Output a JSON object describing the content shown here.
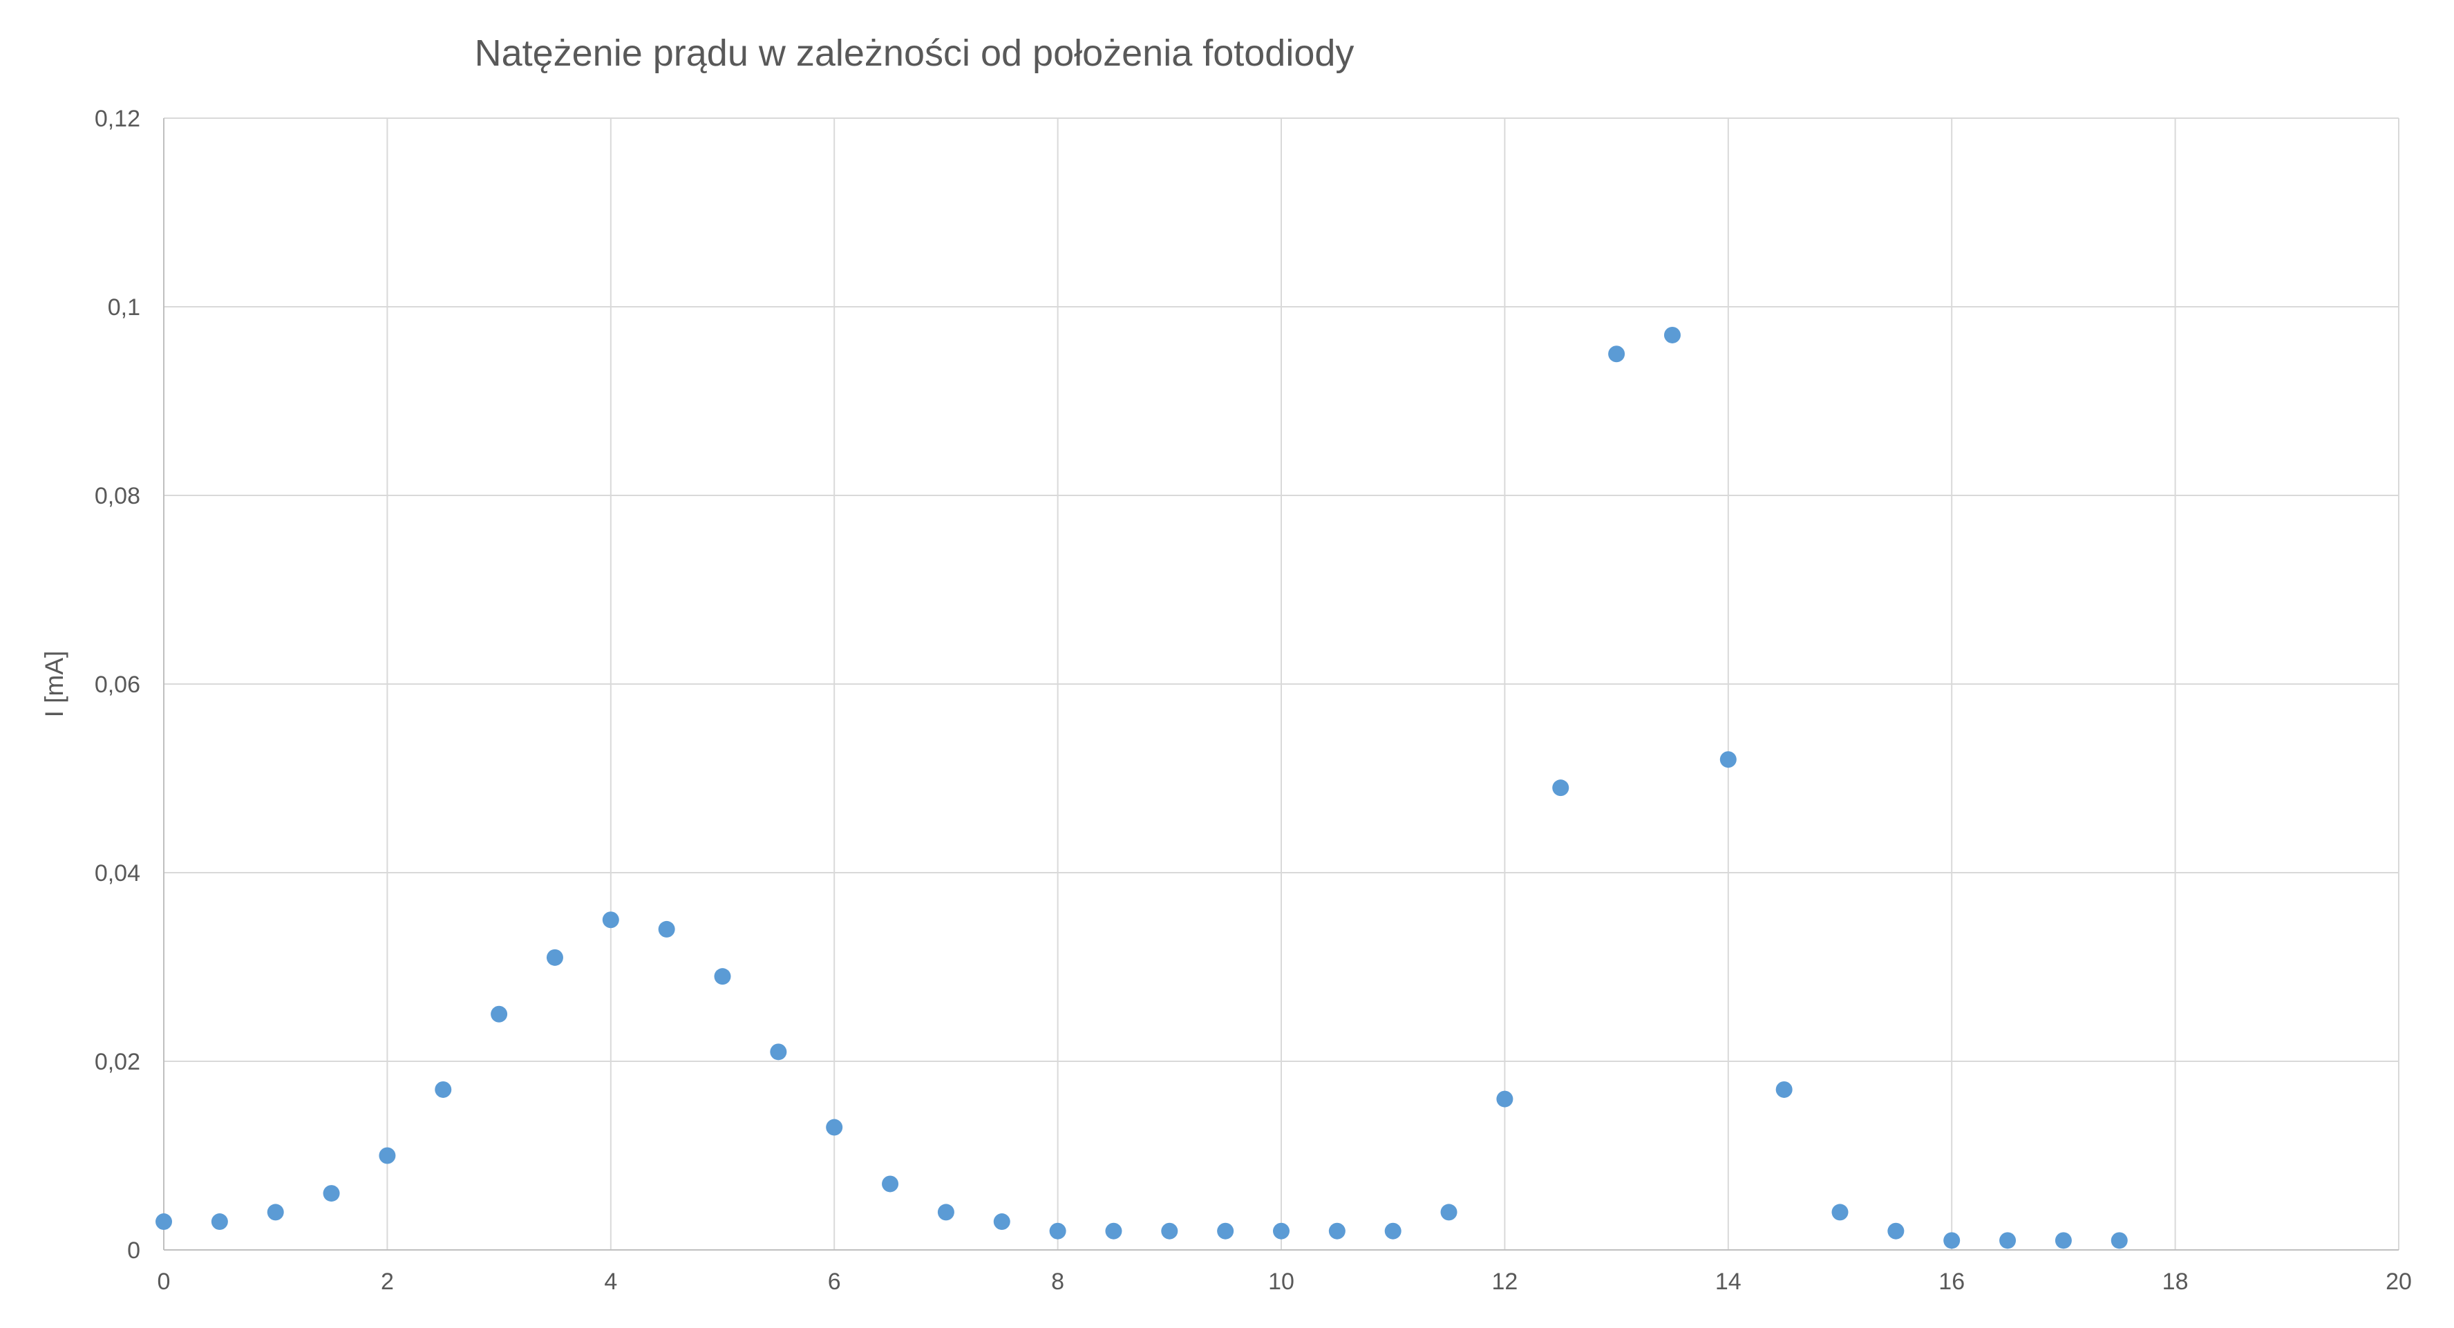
{
  "chart_data": {
    "type": "scatter",
    "title": "Natężenie prądu w zależności od położenia fotodiody",
    "ylabel": "I [mA]",
    "xlabel": "",
    "xlim": [
      0,
      20
    ],
    "ylim": [
      0,
      0.12
    ],
    "x_ticks": [
      0,
      2,
      4,
      6,
      8,
      10,
      12,
      14,
      16,
      18,
      20
    ],
    "x_tick_labels": [
      "0",
      "2",
      "4",
      "6",
      "8",
      "10",
      "12",
      "14",
      "16",
      "18",
      "20"
    ],
    "y_ticks": [
      0,
      0.02,
      0.04,
      0.06,
      0.08,
      0.1,
      0.12
    ],
    "y_tick_labels": [
      "0",
      "0,02",
      "0,04",
      "0,06",
      "0,08",
      "0,1",
      "0,12"
    ],
    "grid": true,
    "legend": "none",
    "marker_color": "#5b9bd5",
    "series": [
      {
        "x": [
          0,
          0.5,
          1,
          1.5,
          2,
          2.5,
          3,
          3.5,
          4,
          4.5,
          5,
          5.5,
          6,
          6.5,
          7,
          7.5,
          8,
          8.5,
          9,
          9.5,
          10,
          10.5,
          11,
          11.5,
          12,
          12.5,
          13,
          13.5,
          14,
          14.5,
          15,
          15.5,
          16,
          16.5,
          17,
          17.5
        ],
        "y": [
          0.003,
          0.003,
          0.004,
          0.006,
          0.01,
          0.017,
          0.025,
          0.031,
          0.035,
          0.034,
          0.029,
          0.021,
          0.013,
          0.007,
          0.004,
          0.003,
          0.002,
          0.002,
          0.002,
          0.002,
          0.002,
          0.002,
          0.002,
          0.004,
          0.016,
          0.049,
          0.095,
          0.097,
          0.052,
          0.017,
          0.004,
          0.002,
          0.001,
          0.001,
          0.001,
          0.001
        ]
      }
    ]
  }
}
